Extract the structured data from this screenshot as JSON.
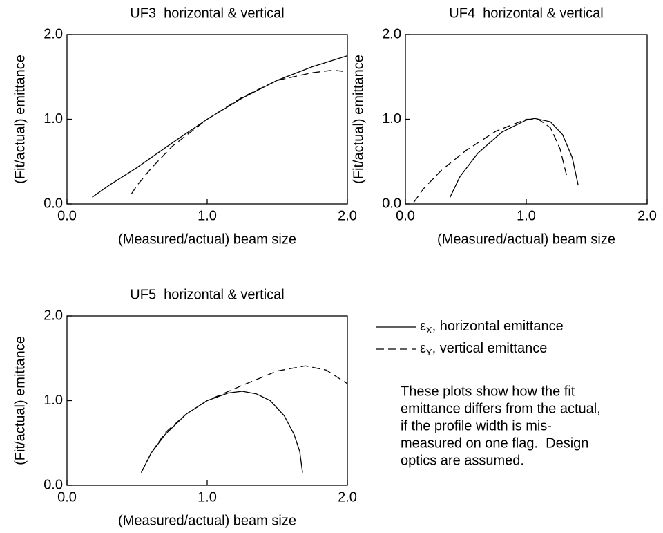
{
  "chart_data": [
    {
      "type": "line",
      "title": "UF3  horizontal & vertical",
      "xlabel": "(Measured/actual) beam size",
      "ylabel": "(Fit/actual) emittance",
      "xlim": [
        0,
        2
      ],
      "ylim": [
        0,
        2
      ],
      "xticks": [
        {
          "value": 0,
          "label": "0.0"
        },
        {
          "value": 1,
          "label": "1.0"
        },
        {
          "value": 2,
          "label": "2.0"
        }
      ],
      "yticks": [
        {
          "value": 0,
          "label": "0.0"
        },
        {
          "value": 1,
          "label": "1.0"
        },
        {
          "value": 2,
          "label": "2.0"
        }
      ],
      "series": [
        {
          "dash": "solid",
          "x": [
            0.18,
            0.3,
            0.5,
            0.75,
            1.0,
            1.25,
            1.5,
            1.75,
            2.0
          ],
          "values": [
            0.08,
            0.22,
            0.43,
            0.72,
            1.0,
            1.25,
            1.46,
            1.62,
            1.75
          ]
        },
        {
          "dash": "dashed",
          "x": [
            0.46,
            0.5,
            0.6,
            0.75,
            1.0,
            1.25,
            1.5,
            1.75,
            1.9,
            2.0
          ],
          "values": [
            0.12,
            0.22,
            0.42,
            0.68,
            1.0,
            1.26,
            1.46,
            1.55,
            1.58,
            1.56
          ]
        }
      ]
    },
    {
      "type": "line",
      "title": "UF4  horizontal & vertical",
      "xlabel": "(Measured/actual) beam size",
      "ylabel": "(Fit/actual) emittance",
      "xlim": [
        0,
        2
      ],
      "ylim": [
        0,
        2
      ],
      "xticks": [
        {
          "value": 0,
          "label": "0.0"
        },
        {
          "value": 1,
          "label": "1.0"
        },
        {
          "value": 2,
          "label": "2.0"
        }
      ],
      "yticks": [
        {
          "value": 0,
          "label": "0.0"
        },
        {
          "value": 1,
          "label": "1.0"
        },
        {
          "value": 2,
          "label": "2.0"
        }
      ],
      "series": [
        {
          "dash": "solid",
          "x": [
            0.37,
            0.45,
            0.6,
            0.8,
            1.0,
            1.07,
            1.2,
            1.3,
            1.38,
            1.43
          ],
          "values": [
            0.08,
            0.32,
            0.6,
            0.85,
            0.99,
            1.01,
            0.97,
            0.82,
            0.55,
            0.22
          ]
        },
        {
          "dash": "dashed",
          "x": [
            0.07,
            0.15,
            0.3,
            0.5,
            0.75,
            1.0,
            1.1,
            1.2,
            1.28,
            1.34
          ],
          "values": [
            0.02,
            0.18,
            0.4,
            0.63,
            0.86,
            1.0,
            1.0,
            0.9,
            0.65,
            0.3
          ]
        }
      ]
    },
    {
      "type": "line",
      "title": "UF5  horizontal & vertical",
      "xlabel": "(Measured/actual) beam size",
      "ylabel": "(Fit/actual) emittance",
      "xlim": [
        0,
        2
      ],
      "ylim": [
        0,
        2
      ],
      "xticks": [
        {
          "value": 0,
          "label": "0.0"
        },
        {
          "value": 1,
          "label": "1.0"
        },
        {
          "value": 2,
          "label": "2.0"
        }
      ],
      "yticks": [
        {
          "value": 0,
          "label": "0.0"
        },
        {
          "value": 1,
          "label": "1.0"
        },
        {
          "value": 2,
          "label": "2.0"
        }
      ],
      "series": [
        {
          "dash": "solid",
          "x": [
            0.53,
            0.6,
            0.7,
            0.85,
            1.0,
            1.15,
            1.25,
            1.35,
            1.45,
            1.55,
            1.62,
            1.66,
            1.68
          ],
          "values": [
            0.15,
            0.38,
            0.6,
            0.84,
            1.0,
            1.09,
            1.11,
            1.08,
            1.0,
            0.82,
            0.6,
            0.4,
            0.15
          ]
        },
        {
          "dash": "dashed",
          "x": [
            0.53,
            0.6,
            0.7,
            0.85,
            1.0,
            1.25,
            1.5,
            1.7,
            1.85,
            2.0
          ],
          "values": [
            0.15,
            0.38,
            0.62,
            0.84,
            1.0,
            1.18,
            1.35,
            1.41,
            1.36,
            1.2
          ]
        }
      ]
    }
  ],
  "legend": [
    {
      "name": "εX, horizontal emittance",
      "dash": "solid"
    },
    {
      "name": "εY, vertical emittance",
      "dash": "dashed"
    }
  ],
  "note": [
    "These plots show how the fit",
    "emittance differs from the actual,",
    "if the profile width is mis-",
    "measured on one flag.  Design",
    "optics are assumed."
  ]
}
